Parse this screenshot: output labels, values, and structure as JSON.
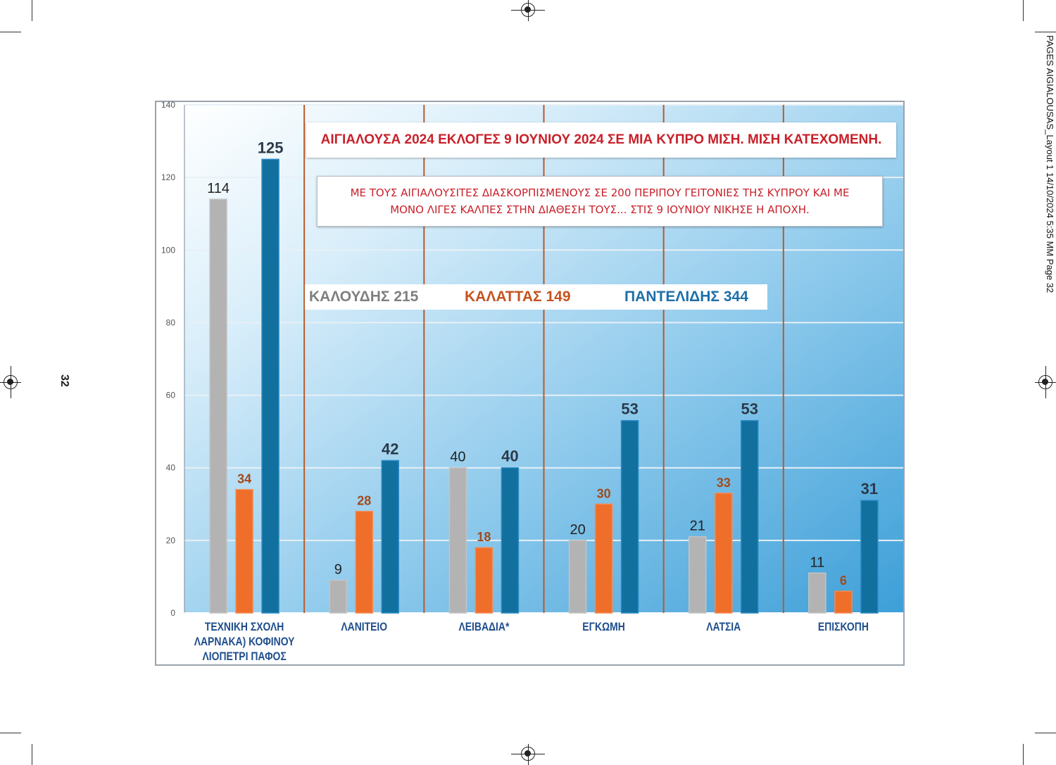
{
  "print_slug": "PAGES AIGIALOUSAS_Layout 1  14/10/2024  5:35 ΜΜ  Page 32",
  "page_number": "32",
  "chart_data": {
    "type": "bar",
    "title": "ΑΙΓΙΑΛΟΥΣΑ 2024 ΕΚΛΟΓΕΣ 9 ΙΟΥΝΙΟΥ 2024 ΣΕ ΜΙΑ ΚΥΠΡΟ ΜΙΣΗ. ΜΙΣΗ ΚΑΤΕΧΟΜΕΝΗ.",
    "subtitle_lines": [
      "ΜΕ ΤΟΥΣ ΑΙΓΙΑΛΟΥΣΙΤΕΣ ΔΙΑΣΚΟΡΠΙΣΜΕΝΟΥΣ ΣΕ 200 ΠΕΡΙΠΟΥ ΓΕΙΤΟΝΙΕΣ  ΤΗΣ ΚΥΠΡΟΥ ΚΑΙ ΜΕ",
      "ΜΟΝΟ ΛΙΓΕΣ ΚΑΛΠΕΣ ΣΤΗΝ ΔΙΑΘΕΣΗ ΤΟΥΣ...  ΣΤΙΣ 9 ΙΟΥΝΙΟΥ ΝΙΚΗΣΕ Η ΑΠΟΧΗ."
    ],
    "categories": [
      [
        "ΤΕΧΝΙΚΗ ΣΧΟΛΗ",
        "ΛΑΡΝΑΚΑ) ΚΟΦΙΝΟΥ",
        "ΛΙΟΠΕΤΡΙ ΠΑΦΟΣ"
      ],
      [
        "ΛΑΝΙΤΕΙΟ"
      ],
      [
        "ΛΕΙΒΑΔΙΑ*"
      ],
      [
        "ΕΓΚΩΜΗ"
      ],
      [
        "ΛΑΤΣΙΑ"
      ],
      [
        "ΕΠΙΣΚΟΠΗ"
      ]
    ],
    "series": [
      {
        "name": "ΚΑΛΟΥΔΗΣ",
        "total": "215",
        "color": "#b3b3b3",
        "label_color": "#222222",
        "values": [
          114,
          9,
          40,
          20,
          21,
          11
        ]
      },
      {
        "name": "ΚΑΛΑΤΤΑΣ",
        "total": "149",
        "color": "#ef6e2a",
        "label_color": "#a24a1c",
        "values": [
          34,
          28,
          18,
          30,
          33,
          6
        ]
      },
      {
        "name": "ΠΑΝΤΕΛΙΔΗΣ",
        "total": "344",
        "color": "#11709e",
        "label_color": "#2b3a4a",
        "values": [
          125,
          42,
          40,
          53,
          53,
          31
        ]
      }
    ],
    "legend_texts": [
      "ΚΑΛΟΥΔΗΣ 215",
      "ΚΑΛΑΤΤΑΣ 149",
      "ΠΑΝΤΕΛΙΔΗΣ 344"
    ],
    "legend_colors": [
      "#7f7f7f",
      "#c55320",
      "#1d6fa8"
    ],
    "ylim": [
      0,
      140
    ],
    "yticks": [
      "0",
      "20",
      "40",
      "60",
      "80",
      "100",
      "120",
      "140"
    ],
    "grid": true,
    "legend_position": "top-center"
  }
}
